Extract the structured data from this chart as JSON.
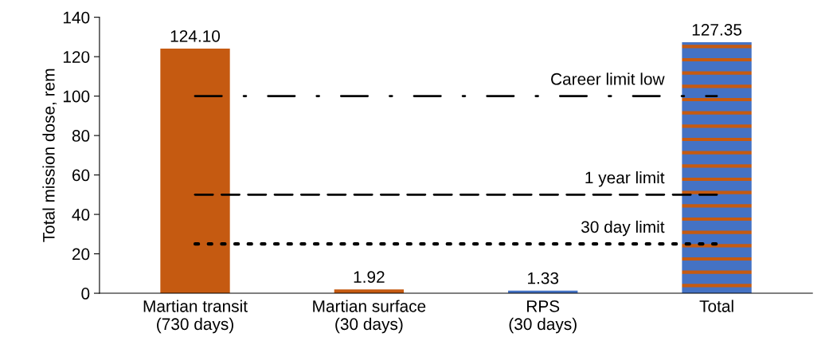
{
  "chart_data": {
    "type": "bar",
    "ylabel": "Total mission dose, rem",
    "categories": [
      "Martian transit\n(730 days)",
      "Martian surface\n(30 days)",
      "RPS\n(30 days)",
      "Total"
    ],
    "values": [
      124.1,
      1.92,
      1.33,
      127.35
    ],
    "colors": [
      "#c55a11",
      "#c55a11",
      "#4472c4",
      "#4472c4"
    ],
    "value_labels": [
      "124.10",
      "1.92",
      "1.33",
      "127.35"
    ],
    "ylim": [
      0,
      140
    ],
    "yticks": [
      0,
      20,
      40,
      60,
      80,
      100,
      120,
      140
    ],
    "grid": false,
    "legend": false,
    "ref_lines": [
      {
        "axis": "y",
        "value": 100,
        "label": "Career limit low",
        "line_style": "dashdot",
        "color": "#000000"
      },
      {
        "axis": "y",
        "value": 50,
        "label": "1 year limit",
        "line_style": "dashed",
        "color": "#000000"
      },
      {
        "axis": "y",
        "value": 25,
        "label": "30 day limit",
        "line_style": "dotted",
        "color": "#000000"
      }
    ]
  }
}
